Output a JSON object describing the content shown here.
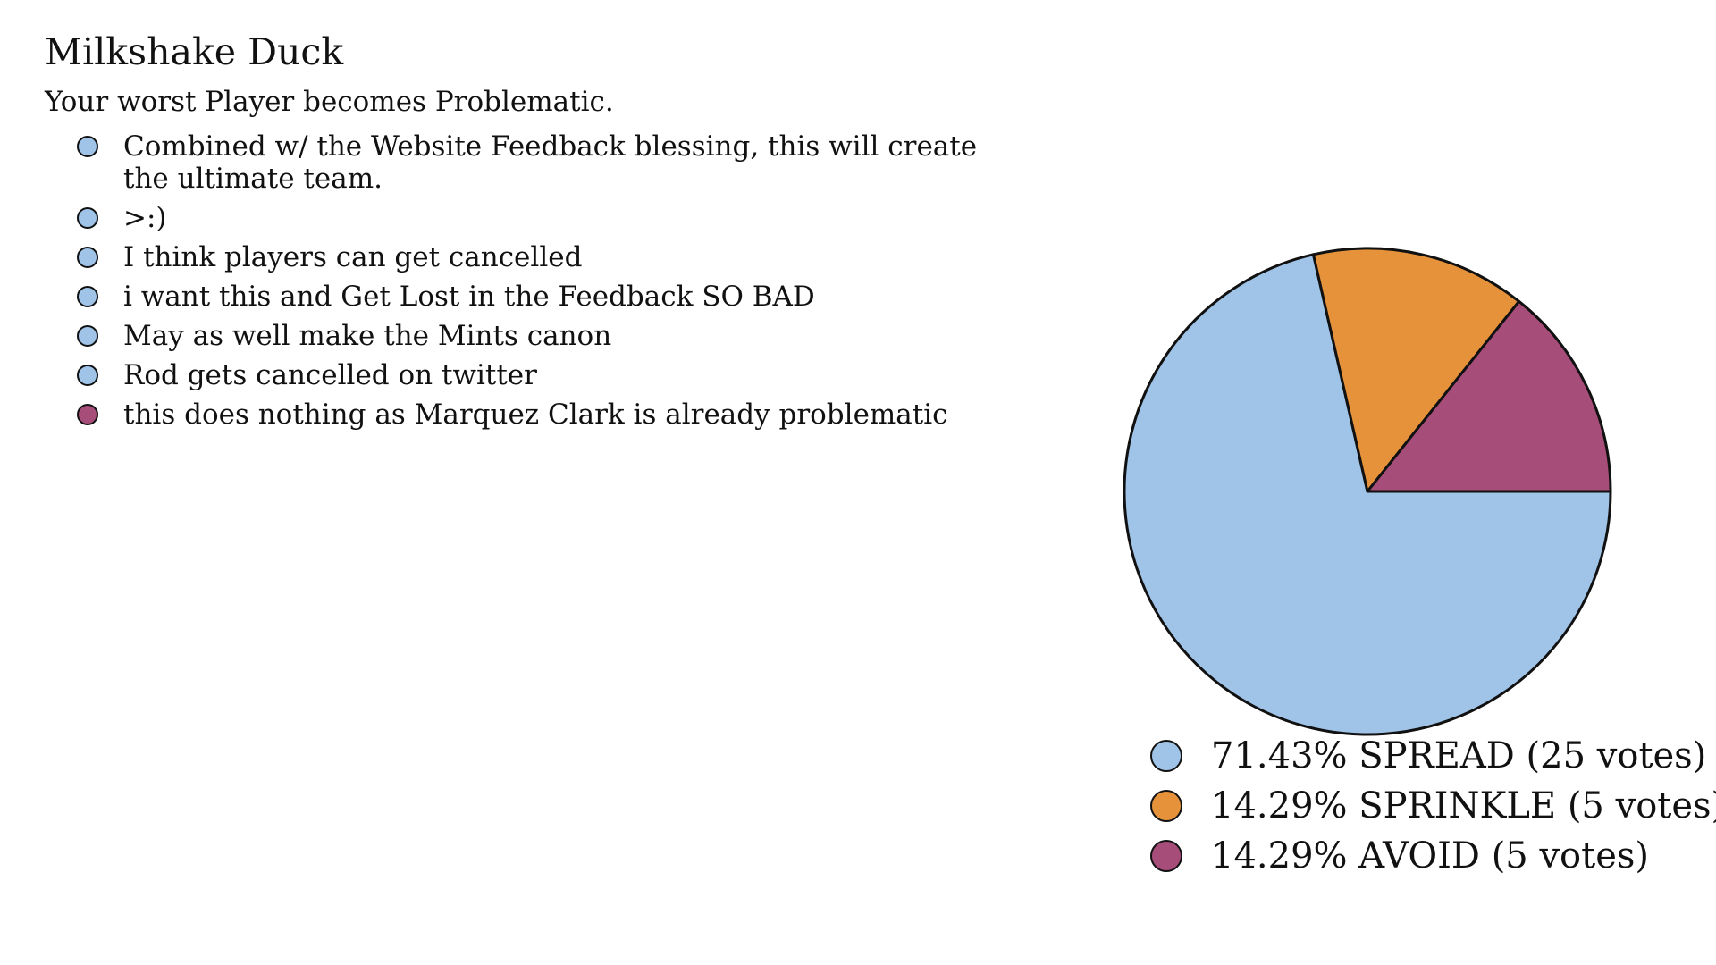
{
  "title": "Milkshake Duck",
  "subtitle": "Your worst Player becomes Problematic.",
  "comments": [
    {
      "text": "Combined w/ the Website Feedback blessing, this will create the ultimate team.",
      "color": "#a0c4e8"
    },
    {
      "text": ">:)",
      "color": "#a0c4e8"
    },
    {
      "text": "I think players can get cancelled",
      "color": "#a0c4e8"
    },
    {
      "text": "i want this and Get Lost in the Feedback SO BAD",
      "color": "#a0c4e8"
    },
    {
      "text": "May as well make the Mints canon",
      "color": "#a0c4e8"
    },
    {
      "text": "Rod gets cancelled on twitter",
      "color": "#a0c4e8"
    },
    {
      "text": "this does nothing as Marquez Clark is already problematic",
      "color": "#a64d79"
    }
  ],
  "chart_data": {
    "type": "pie",
    "title": "",
    "series": [
      {
        "name": "SPREAD",
        "votes": 25,
        "percent": 71.43,
        "label": "71.43% SPREAD (25 votes)",
        "color": "#a0c4e8"
      },
      {
        "name": "SPRINKLE",
        "votes": 5,
        "percent": 14.29,
        "label": "14.29% SPRINKLE (5 votes)",
        "color": "#e6923b"
      },
      {
        "name": "AVOID",
        "votes": 5,
        "percent": 14.29,
        "label": "14.29% AVOID (5 votes)",
        "color": "#a64d79"
      }
    ],
    "legend_position": "bottom"
  }
}
